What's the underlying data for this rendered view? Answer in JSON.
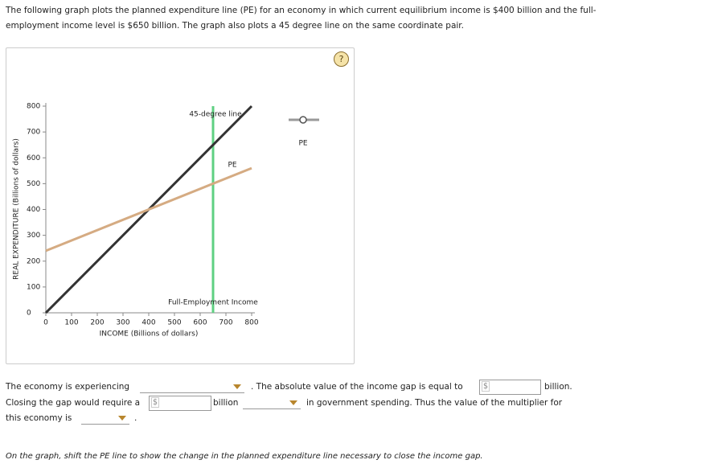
{
  "intro": "The following graph plots the planned expenditure line (PE) for an economy in which current equilibrium income is $400 billion and the full-employment income level is $650 billion. The graph also plots a 45 degree line on the same coordinate pair.",
  "help": "?",
  "chart": {
    "type": "line",
    "x_label": "INCOME (Billions of dollars)",
    "y_label": "REAL EXPENDITURE (Billions of dollars)",
    "xlim": [
      0,
      800
    ],
    "ylim": [
      0,
      800
    ],
    "xticks": [
      0,
      100,
      200,
      300,
      400,
      500,
      600,
      700,
      800
    ],
    "yticks": [
      0,
      100,
      200,
      300,
      400,
      500,
      600,
      700,
      800
    ],
    "series": [
      {
        "name": "45-degree line",
        "color": "#333333",
        "x": [
          0,
          800
        ],
        "values": [
          0,
          800
        ]
      },
      {
        "name": "PE",
        "color": "#d5ab82",
        "x": [
          0,
          800
        ],
        "values": [
          240,
          560
        ]
      }
    ],
    "vline": {
      "name": "Full-Employment Income",
      "color": "#5fd082",
      "x": 650
    },
    "legend_color": "#999999"
  },
  "question": {
    "l1a": "The economy is experiencing",
    "l1b": ". The absolute value of the income gap is equal to",
    "currency": "$",
    "l1c": "billion.",
    "l2a": "Closing the gap would require a",
    "l2b": "billion",
    "l2c": "in government spending. Thus the value of the multiplier for",
    "l3a": "this economy is",
    "l3b": "."
  },
  "instruction": "On the graph, shift the PE line to show the change in the planned expenditure line necessary to close the income gap."
}
